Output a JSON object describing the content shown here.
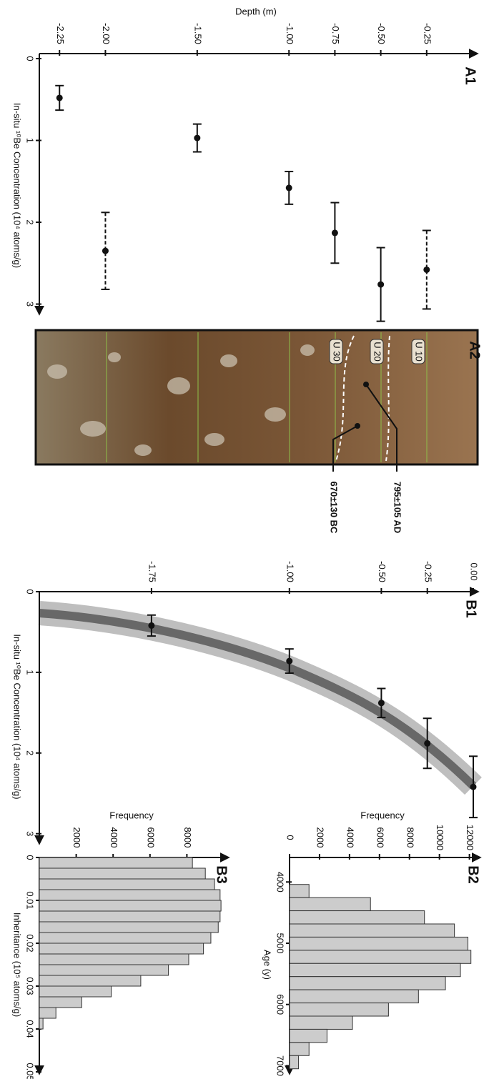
{
  "chart_data": [
    {
      "type": "scatter",
      "title": "A1",
      "x_label": "In-situ ¹⁰Be Concentration (10⁴ atoms/g)",
      "y_label": "Depth (m)",
      "x": [
        2.58,
        2.76,
        2.13,
        1.58,
        0.97,
        2.35,
        0.48
      ],
      "x_err": [
        0.48,
        0.45,
        0.37,
        0.2,
        0.17,
        0.47,
        0.15
      ],
      "y": [
        -0.25,
        -0.5,
        -0.75,
        -1.0,
        -1.5,
        -2.0,
        -2.25
      ],
      "dashed": [
        true,
        false,
        false,
        false,
        false,
        true,
        false
      ],
      "xlim": [
        0,
        3.1
      ],
      "ylim": [
        -2.36,
        0
      ],
      "xticks": [
        0,
        1,
        2,
        3
      ],
      "yticks": [
        -0.25,
        {
          "value": -0.5,
          "label": "-0.50"
        },
        -0.75,
        {
          "value": -1.0,
          "label": "-1.00"
        },
        {
          "value": -1.5,
          "label": "-1.50"
        },
        {
          "value": -2.0,
          "label": "-2.00"
        },
        -2.25
      ],
      "color": "#111111"
    },
    {
      "type": "scatter",
      "title": "B1",
      "x_label": "In-situ ¹⁰Be Concentration (10⁴ atoms/g)",
      "x": [
        2.42,
        1.88,
        1.38,
        0.86,
        0.42
      ],
      "x_err": [
        0.38,
        0.31,
        0.18,
        0.15,
        0.13
      ],
      "y": [
        0.0,
        -0.25,
        -0.5,
        -1.0,
        -1.75
      ],
      "dashed": [
        false,
        false,
        false,
        false,
        false
      ],
      "xlim": [
        0,
        3.1
      ],
      "ylim": [
        -2.36,
        0
      ],
      "xticks": [
        0,
        1,
        2,
        3
      ],
      "yticks": [
        {
          "value": 0,
          "label": "0.00"
        },
        -0.25,
        {
          "value": -0.5,
          "label": "-0.50"
        },
        {
          "value": -1.0,
          "label": "-1.00"
        },
        -1.75
      ],
      "color": "#111111"
    },
    {
      "type": "histogram",
      "title": "B2",
      "x_label": "Age (y)",
      "y_label": "Frequency",
      "bins": [
        4040,
        4255,
        4470,
        4685,
        4900,
        5115,
        5330,
        5545,
        5760,
        5975,
        6190,
        6405,
        6620,
        6835,
        7050
      ],
      "values": [
        1300,
        5400,
        9000,
        11000,
        11900,
        12100,
        11400,
        10400,
        8600,
        6600,
        4200,
        2500,
        1300,
        600
      ],
      "xlim": [
        3600,
        7100
      ],
      "ylim": [
        0,
        12400
      ],
      "xticks": [
        4000,
        5000,
        6000,
        7000
      ],
      "yticks": [
        0,
        2000,
        4000,
        6000,
        8000,
        10000,
        12000
      ],
      "color": "#cccccc"
    },
    {
      "type": "histogram",
      "title": "B3",
      "x_label": "Inheritance (10⁵ atoms/g)",
      "y_label": "Frequency",
      "bins": [
        0,
        0.0025,
        0.005,
        0.0075,
        0.01,
        0.0125,
        0.015,
        0.0175,
        0.02,
        0.0225,
        0.025,
        0.0275,
        0.03,
        0.0325,
        0.035,
        0.0375,
        0.04
      ],
      "values": [
        8300,
        9000,
        9500,
        9800,
        9850,
        9800,
        9700,
        9300,
        8900,
        8100,
        7000,
        5500,
        3900,
        2300,
        900,
        200
      ],
      "xlim": [
        0,
        0.05
      ],
      "ylim": [
        0,
        10000
      ],
      "xticks": [
        0,
        0.01,
        0.02,
        0.03,
        0.04,
        0.05
      ],
      "yticks": [
        2000,
        4000,
        6000,
        8000
      ],
      "color": "#cccccc"
    }
  ],
  "photo": {
    "title": "A2",
    "layers": [
      "U 10",
      "U 20",
      "U 30"
    ],
    "annotations": [
      "795±105 AD",
      "670±130 BC"
    ]
  }
}
